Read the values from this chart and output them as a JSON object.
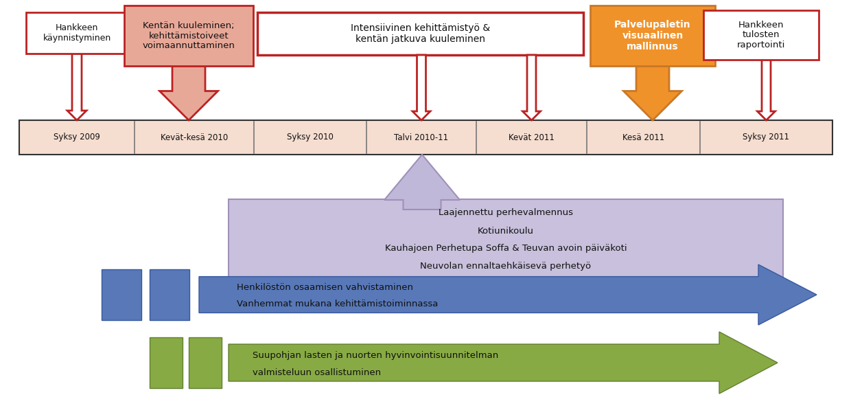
{
  "timeline_bg": "#f5ddd0",
  "timeline_border": "#333333",
  "box_white_fill": "#ffffff",
  "box_pink_fill": "#e8a898",
  "box_orange_fill": "#f0922a",
  "box_outline_color": "#bb2222",
  "box_orange_outline": "#c87828",
  "purple_box_fill": "#c8c0dc",
  "purple_box_border": "#a090b8",
  "purple_arrow_fill": "#c0b8d8",
  "purple_arrow_border": "#a090b8",
  "blue_arrow_fill": "#5878b8",
  "blue_arrow_border": "#3858a0",
  "green_arrow_fill": "#88aa44",
  "green_arrow_border": "#608030",
  "blue_rect_fill": "#5878b8",
  "green_rect_fill": "#88aa44",
  "bg_color": "#ffffff",
  "text_timeline": [
    "Syksy 2009",
    "Kevät-kesä 2010",
    "Syksy 2010",
    "Talvi 2010-11",
    "Kevät 2011",
    "Kesä 2011",
    "Syksy 2011"
  ],
  "box1_text": "Hankkeen\nkäynnistyminen",
  "box2_text": "Kentän kuuleminen;\nkehittämistoiveet\nvoimaannuttaminen",
  "box3_text": "Intensiivinen kehittämistyö &\nkentän jatkuva kuuleminen",
  "box4_text": "Palvelupaletin\nvisuaalinen\nmallinnus",
  "box5_text": "Hankkeen\ntulosten\nraportointi",
  "purple_lines": [
    "Laajennettu perhevalmennus",
    "Kotiunikoulu",
    "Kauhajoen Perhetupa Soffa & Teuvan avoin päiväkoti",
    "Neuvolan ennaltaehkäisevä perhetyö"
  ],
  "blue_line1": "Henkilöstön osaamisen vahvistaminen",
  "blue_line2": "Vanhemmat mukana kehittämistoiminnassa",
  "green_line1": "Suupohjan lasten ja nuorten hyvinvointisuunnitelman",
  "green_line2": "valmisteluun osallistuminen"
}
